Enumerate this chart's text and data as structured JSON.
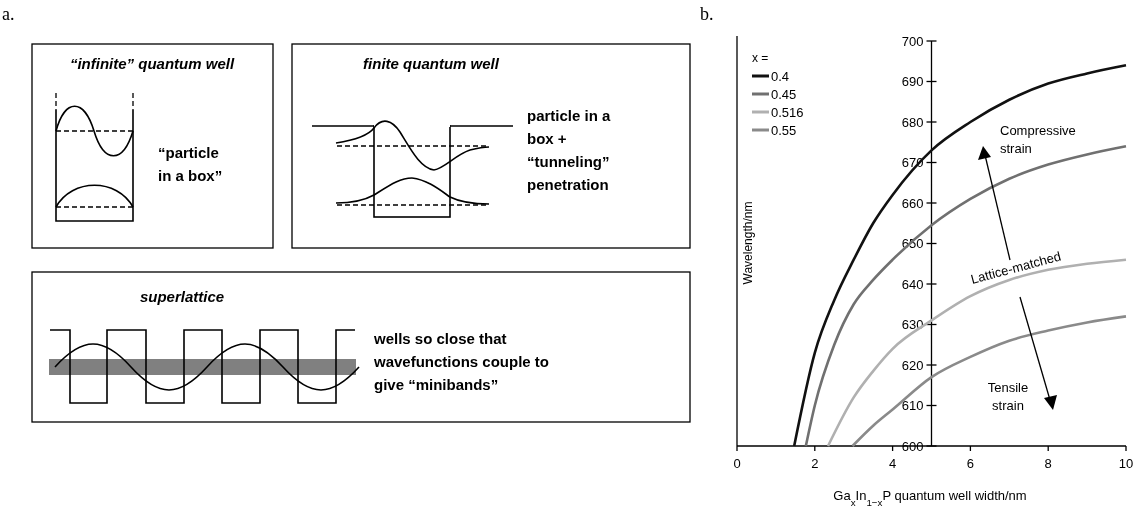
{
  "chart_data": [
    {
      "type": "other",
      "title": "a.",
      "annotations": [
        "“infinite” quantum well",
        "“particle in a box”",
        "finite quantum well",
        "particle in a box + “tunneling” penetration",
        "superlattice",
        "wells so close that wavefunctions couple to give “minibands”"
      ]
    },
    {
      "type": "line",
      "title": "b.",
      "xlabel": "Ga$_{x}$In$_{1−x}$P quantum well width/nm",
      "ylabel": "Wavelength/nm",
      "legend_title": "x =",
      "legend": "top left",
      "xlim": [
        0,
        10
      ],
      "xticks": [
        0,
        2,
        4,
        6,
        8,
        10
      ],
      "ylim": [
        600,
        700
      ],
      "yticks": [
        600,
        610,
        620,
        630,
        640,
        650,
        660,
        670,
        680,
        690,
        700
      ],
      "line_style": "solid",
      "annotations": [
        "Compressive strain",
        "Lattice-matched",
        "Tensile strain"
      ],
      "series": [
        {
          "name": "0.4",
          "color": "#111111",
          "x": [
            1.47,
            2,
            2.5,
            3,
            3.5,
            4,
            5,
            6,
            7,
            8,
            9,
            10
          ],
          "values": [
            600,
            623,
            636,
            646,
            655,
            662,
            673,
            680,
            685.5,
            689.5,
            692,
            694
          ]
        },
        {
          "name": "0.45",
          "color": "#707070",
          "x": [
            1.77,
            2,
            2.5,
            3,
            3.5,
            4,
            5,
            6,
            7,
            8,
            9,
            10
          ],
          "values": [
            600,
            610,
            625,
            635,
            641,
            646,
            654.5,
            661,
            666,
            669.5,
            672,
            674
          ]
        },
        {
          "name": "0.516",
          "color": "#b0b0b0",
          "x": [
            2.34,
            3,
            3.5,
            4,
            5,
            6,
            7,
            8,
            9,
            10
          ],
          "values": [
            600,
            612,
            618.5,
            624,
            631,
            637,
            641,
            643.5,
            645,
            646
          ]
        },
        {
          "name": "0.55",
          "color": "#8a8a8a",
          "x": [
            2.97,
            3.5,
            4,
            5,
            6,
            7,
            8,
            9,
            10
          ],
          "values": [
            600,
            605,
            609,
            617,
            622,
            626,
            628.5,
            630.5,
            632
          ]
        }
      ]
    }
  ]
}
